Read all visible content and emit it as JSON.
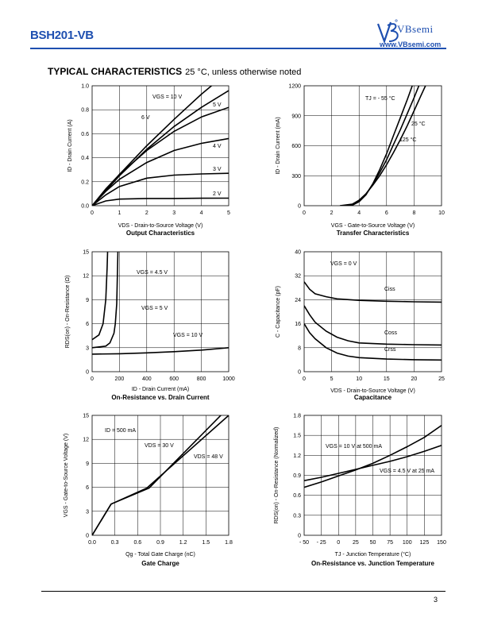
{
  "header": {
    "part_number": "BSH201-VB",
    "brand_name": "VBsemi",
    "brand_url": "www.VBsemi.com",
    "brand_color": "#1e4fb0"
  },
  "section": {
    "title": "TYPICAL CHARACTERISTICS",
    "subtitle": "25 °C, unless otherwise noted"
  },
  "page_number": "3",
  "chart_data": [
    {
      "id": "output",
      "type": "line",
      "title": "Output Characteristics",
      "xlabel": "VDS - Drain-to-Source Voltage (V)",
      "ylabel": "ID - Drain Current (A)",
      "xlim": [
        0,
        5
      ],
      "ylim": [
        0,
        1.0
      ],
      "xticks": [
        "0",
        "1",
        "2",
        "3",
        "4",
        "5"
      ],
      "yticks": [
        "0.0",
        "0.2",
        "0.4",
        "0.6",
        "0.8",
        "1.0"
      ],
      "series": [
        {
          "name": "VGS = 10 V",
          "x": [
            0,
            1,
            2,
            3,
            4,
            5
          ],
          "y": [
            0,
            0.26,
            0.5,
            0.72,
            0.93,
            1.12
          ]
        },
        {
          "name": "6 V",
          "x": [
            0,
            1,
            2,
            3,
            4,
            5
          ],
          "y": [
            0,
            0.25,
            0.47,
            0.66,
            0.82,
            0.96
          ]
        },
        {
          "name": "5 V",
          "x": [
            0,
            0.5,
            1,
            2,
            3,
            4,
            5
          ],
          "y": [
            0,
            0.14,
            0.26,
            0.46,
            0.62,
            0.74,
            0.82
          ]
        },
        {
          "name": "4 V",
          "x": [
            0,
            0.5,
            1,
            2,
            3,
            4,
            5
          ],
          "y": [
            0,
            0.12,
            0.22,
            0.36,
            0.46,
            0.52,
            0.56
          ]
        },
        {
          "name": "3 V",
          "x": [
            0,
            0.5,
            1,
            2,
            3,
            4,
            5
          ],
          "y": [
            0,
            0.09,
            0.16,
            0.23,
            0.255,
            0.265,
            0.27
          ]
        },
        {
          "name": "2 V",
          "x": [
            0,
            0.5,
            1,
            2,
            3,
            4,
            5
          ],
          "y": [
            0,
            0.04,
            0.055,
            0.06,
            0.06,
            0.062,
            0.063
          ]
        }
      ],
      "annotations": [
        "VGS = 10 V",
        "6 V",
        "5 V",
        "4 V",
        "3 V",
        "2 V"
      ]
    },
    {
      "id": "transfer",
      "type": "line",
      "title": "Transfer Characteristics",
      "xlabel": "VGS - Gate-to-Source Voltage (V)",
      "ylabel": "ID - Drain Current (mA)",
      "xlim": [
        0,
        10
      ],
      "ylim": [
        0,
        1200
      ],
      "xticks": [
        "0",
        "2",
        "4",
        "6",
        "8",
        "10"
      ],
      "yticks": [
        "0",
        "300",
        "600",
        "900",
        "1200"
      ],
      "series": [
        {
          "name": "TJ = - 55 °C",
          "x": [
            2.8,
            3.5,
            4,
            4.5,
            5,
            5.5,
            6,
            6.5,
            7,
            7.5,
            8
          ],
          "y": [
            0,
            5,
            40,
            110,
            220,
            360,
            520,
            700,
            880,
            1060,
            1250
          ]
        },
        {
          "name": "25 °C",
          "x": [
            2.8,
            3.5,
            4,
            4.5,
            5,
            5.5,
            6,
            6.5,
            7,
            7.5,
            8,
            8.5
          ],
          "y": [
            0,
            8,
            45,
            115,
            215,
            330,
            460,
            610,
            760,
            920,
            1080,
            1250
          ]
        },
        {
          "name": "125 °C",
          "x": [
            2.6,
            3.5,
            4,
            4.5,
            5,
            5.5,
            6,
            6.5,
            7,
            7.5,
            8,
            8.5,
            9
          ],
          "y": [
            0,
            15,
            55,
            120,
            205,
            300,
            410,
            530,
            660,
            800,
            950,
            1100,
            1250
          ]
        }
      ],
      "annotations": [
        "TJ = - 55 °C",
        "25 °C",
        "125 °C"
      ]
    },
    {
      "id": "onres",
      "type": "line",
      "title": "On-Resistance vs. Drain Current",
      "xlabel": "ID - Drain Current (mA)",
      "ylabel": "RDS(on) - On-Resistance (Ω)",
      "xlim": [
        0,
        1000
      ],
      "ylim": [
        0,
        15
      ],
      "xticks": [
        "0",
        "200",
        "400",
        "600",
        "800",
        "1000"
      ],
      "yticks": [
        "0",
        "3",
        "6",
        "9",
        "12",
        "15"
      ],
      "series": [
        {
          "name": "VGS = 4.5 V",
          "x": [
            0,
            50,
            80,
            100,
            110,
            115
          ],
          "y": [
            4.0,
            4.6,
            6,
            9,
            13,
            16
          ]
        },
        {
          "name": "VGS = 5 V",
          "x": [
            0,
            100,
            130,
            160,
            170,
            180,
            190
          ],
          "y": [
            3.0,
            3.2,
            3.6,
            4.8,
            6,
            8.5,
            16
          ]
        },
        {
          "name": "VGS = 10 V",
          "x": [
            0,
            200,
            400,
            600,
            800,
            1000
          ],
          "y": [
            2.2,
            2.25,
            2.35,
            2.5,
            2.7,
            3.0
          ]
        }
      ],
      "annotations": [
        "VGS = 4.5 V",
        "VGS = 5 V",
        "VGS = 10 V"
      ]
    },
    {
      "id": "capacitance",
      "type": "line",
      "title": "Capacitance",
      "xlabel": "VDS - Drain-to-Source Voltage (V)",
      "ylabel": "C - Capacitance (pF)",
      "xlim": [
        0,
        25
      ],
      "ylim": [
        0,
        40
      ],
      "xticks": [
        "0",
        "5",
        "10",
        "15",
        "20",
        "25"
      ],
      "yticks": [
        "0",
        "8",
        "16",
        "24",
        "32",
        "40"
      ],
      "series": [
        {
          "name": "Ciss",
          "x": [
            0,
            1,
            2,
            4,
            6,
            10,
            15,
            20,
            25
          ],
          "y": [
            30,
            27.5,
            26,
            25,
            24.3,
            23.8,
            23.5,
            23.3,
            23.2
          ]
        },
        {
          "name": "Coss",
          "x": [
            0,
            1,
            2,
            4,
            6,
            8,
            10,
            15,
            20,
            25
          ],
          "y": [
            22,
            19,
            16.5,
            13.5,
            11.5,
            10.3,
            9.6,
            9.2,
            9.0,
            8.9
          ]
        },
        {
          "name": "Crss",
          "x": [
            0,
            1,
            2,
            4,
            6,
            8,
            10,
            15,
            20,
            25
          ],
          "y": [
            16,
            13,
            11,
            8,
            6.2,
            5.2,
            4.7,
            4.2,
            4.0,
            3.9
          ]
        }
      ],
      "annotations": [
        "VGS = 0 V",
        "Ciss",
        "Coss",
        "Crss"
      ]
    },
    {
      "id": "gate",
      "type": "line",
      "title": "Gate Charge",
      "xlabel": "Qg - Total Gate Charge (nC)",
      "ylabel": "VGS - Gate-to-Source Voltage (V)",
      "xlim": [
        0,
        1.8
      ],
      "ylim": [
        0,
        15
      ],
      "xticks": [
        "0.0",
        "0.3",
        "0.6",
        "0.9",
        "1.2",
        "1.5",
        "1.8"
      ],
      "yticks": [
        "0",
        "3",
        "6",
        "9",
        "12",
        "15"
      ],
      "series": [
        {
          "name": "VDS = 30 V",
          "x": [
            0,
            0.25,
            0.75,
            1.8
          ],
          "y": [
            0,
            3.9,
            5.9,
            16
          ]
        },
        {
          "name": "VDS = 48 V",
          "x": [
            0,
            0.25,
            0.72,
            1.8
          ],
          "y": [
            0,
            3.9,
            5.9,
            15
          ]
        }
      ],
      "annotations": [
        "ID = 500 mA",
        "VDS = 30 V",
        "VDS = 48 V"
      ]
    },
    {
      "id": "junction",
      "type": "line",
      "title": "On-Resistance vs. Junction Temperature",
      "xlabel": "TJ - Junction Temperature (°C)",
      "ylabel": "RDS(on) - On-Resistance (Normalized)",
      "xlim": [
        -50,
        150
      ],
      "ylim": [
        0,
        1.8
      ],
      "xticks": [
        "- 50",
        "- 25",
        "0",
        "25",
        "50",
        "75",
        "100",
        "125",
        "150"
      ],
      "yticks": [
        "0",
        "0.3",
        "0.6",
        "0.9",
        "1.2",
        "1.5",
        "1.8"
      ],
      "series": [
        {
          "name": "VGS = 10 V at 500 mA",
          "x": [
            -50,
            -25,
            0,
            25,
            50,
            75,
            100,
            125,
            150
          ],
          "y": [
            0.72,
            0.8,
            0.89,
            0.98,
            1.08,
            1.2,
            1.33,
            1.47,
            1.65
          ]
        },
        {
          "name": "VGS = 4.5 V at 25 mA",
          "x": [
            -50,
            -25,
            0,
            25,
            50,
            75,
            100,
            125,
            150
          ],
          "y": [
            0.82,
            0.87,
            0.93,
            0.99,
            1.05,
            1.11,
            1.18,
            1.26,
            1.35
          ]
        }
      ],
      "annotations": [
        "VGS = 10 V at 500 mA",
        "VGS = 4.5 V at 25 mA"
      ]
    }
  ]
}
